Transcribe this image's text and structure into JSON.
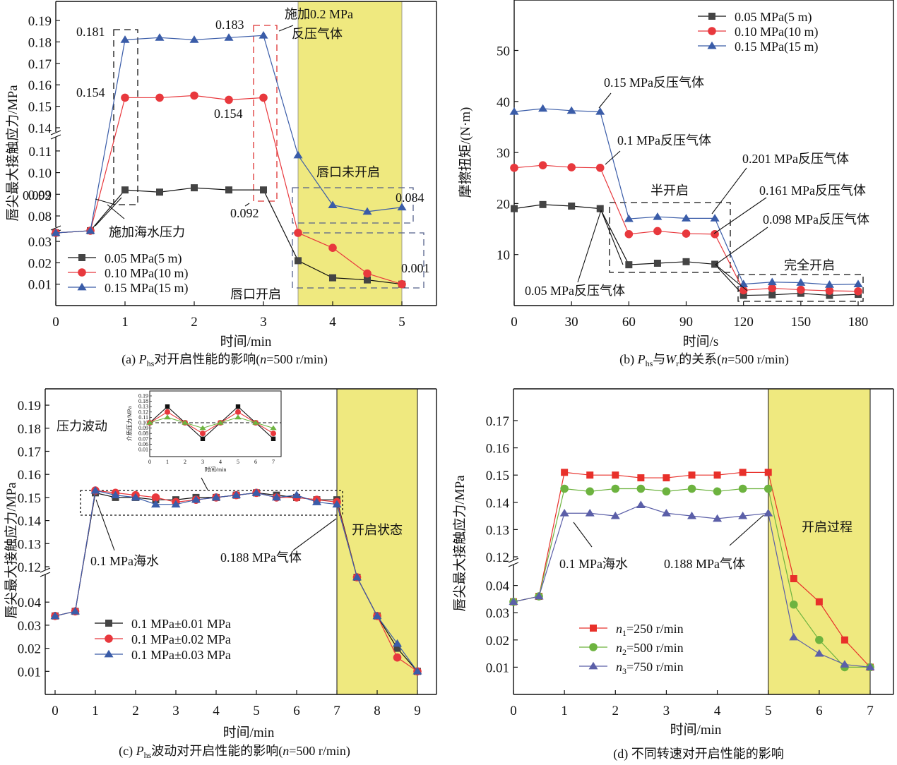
{
  "chart_data": [
    {
      "id": "a",
      "type": "line",
      "caption": "(a) Phs对开启性能的影响(n=500 r/min)",
      "caption_parts": {
        "prefix": "(a) ",
        "P": "P",
        "sub": "hs",
        "mid": "对开启性能的影响(",
        "n": "n",
        "suffix": "=500 r/min)"
      },
      "xlabel": "时间/min",
      "ylabel": "唇尖最大接触应力/MPa",
      "xlim": [
        0,
        5.5
      ],
      "xticks": [
        0,
        1,
        2,
        3,
        4,
        5
      ],
      "y_broken": true,
      "y_segments": [
        {
          "range": [
            0,
            0.035
          ],
          "ticks": [
            0.01,
            0.02,
            0.03
          ]
        },
        {
          "range": [
            0.075,
            0.115
          ],
          "ticks": [
            0.08,
            0.09,
            0.1,
            0.11
          ]
        },
        {
          "range": [
            0.135,
            0.2
          ],
          "ticks": [
            0.14,
            0.15,
            0.16,
            0.17,
            0.18,
            0.19
          ]
        }
      ],
      "x": [
        0,
        0.5,
        1,
        1.5,
        2,
        2.5,
        3,
        3.5,
        4,
        4.5,
        5
      ],
      "series": [
        {
          "name": "0.05 MPa(5 m)",
          "marker": "square",
          "color": "#444444",
          "line": "#111111",
          "values": [
            0.034,
            0.035,
            0.092,
            0.091,
            0.093,
            0.092,
            0.092,
            0.021,
            0.013,
            0.012,
            0.01
          ]
        },
        {
          "name": "0.10 MPa(10 m)",
          "marker": "circle",
          "color": "#e8383d",
          "line": "#e8383d",
          "values": [
            0.034,
            0.035,
            0.154,
            0.154,
            0.155,
            0.153,
            0.154,
            0.034,
            0.027,
            0.015,
            0.01
          ]
        },
        {
          "name": "0.15 MPa(15 m)",
          "marker": "triangle",
          "color": "#3a5ca8",
          "line": "#3a5ca8",
          "values": [
            0.034,
            0.035,
            0.181,
            0.182,
            0.181,
            0.182,
            0.183,
            0.108,
            0.085,
            0.082,
            0.084
          ]
        }
      ],
      "shaded_region": {
        "x_range": [
          3.5,
          5
        ],
        "color": "#efe97f"
      },
      "legend": {
        "placement": "bottom-left"
      },
      "annotations": [
        "0.181",
        "0.154",
        "0.092",
        "0.183",
        "0.154",
        "0.092",
        "施加0.2 MPa",
        "反压气体",
        "唇口未开启",
        "0.084",
        "0.001",
        "施加海水压力",
        "唇口开启"
      ]
    },
    {
      "id": "b",
      "type": "line",
      "caption": "(b) Phs与Wr的关系(n=500 r/min)",
      "caption_parts": {
        "prefix": "(b) ",
        "P": "P",
        "sub": "hs",
        "mid": "与",
        "W": "W",
        "wsub": "r",
        "mid2": "的关系(",
        "n": "n",
        "suffix": "=500 r/min)"
      },
      "xlabel": "时间/s",
      "ylabel": "摩擦扭矩/(N·m)",
      "xlim": [
        0,
        190
      ],
      "ylim": [
        0,
        60
      ],
      "xticks": [
        0,
        30,
        60,
        90,
        120,
        150,
        180
      ],
      "yticks": [
        10,
        20,
        30,
        40,
        50
      ],
      "x": [
        0,
        15,
        30,
        45,
        60,
        75,
        90,
        105,
        120,
        135,
        150,
        165,
        180
      ],
      "series": [
        {
          "name": "0.05 MPa(5 m)",
          "marker": "square",
          "color": "#444444",
          "line": "#111111",
          "values": [
            19.0,
            19.8,
            19.5,
            19.0,
            8.0,
            8.3,
            8.6,
            8.1,
            2.0,
            2.1,
            2.4,
            2.0,
            2.2
          ]
        },
        {
          "name": "0.10 MPa(10 m)",
          "marker": "circle",
          "color": "#e8383d",
          "line": "#e8383d",
          "values": [
            27.0,
            27.5,
            27.1,
            27.0,
            14.0,
            14.6,
            14.1,
            14.0,
            3.0,
            3.4,
            3.1,
            2.9,
            2.8
          ]
        },
        {
          "name": "0.15 MPa(15 m)",
          "marker": "triangle",
          "color": "#3a5ca8",
          "line": "#3a5ca8",
          "values": [
            38.0,
            38.6,
            38.2,
            38.0,
            17.0,
            17.4,
            17.1,
            17.1,
            4.2,
            4.6,
            4.5,
            4.1,
            4.2
          ]
        }
      ],
      "legend": {
        "placement": "top-right"
      },
      "annotations": [
        "0.15 MPa反压气体",
        "0.1 MPa反压气体",
        "0.201 MPa反压气体",
        "0.161 MPa反压气体",
        "0.098 MPa反压气体",
        "0.05 MPa反压气体",
        "半开启",
        "完全开启"
      ]
    },
    {
      "id": "c",
      "type": "line",
      "caption": "(c) Phs波动对开启性能的影响(n=500 r/min)",
      "caption_parts": {
        "prefix": "(c) ",
        "P": "P",
        "sub": "hs",
        "mid": "波动对开启性能的影响(",
        "n": "n",
        "suffix": "=500 r/min)"
      },
      "xlabel": "时间/min",
      "ylabel": "唇尖最大接触应力/MPa",
      "xlim": [
        0,
        9.5
      ],
      "xticks": [
        0,
        1,
        2,
        3,
        4,
        5,
        6,
        7,
        8,
        9
      ],
      "y_broken": true,
      "y_segments": [
        {
          "range": [
            0,
            0.045
          ],
          "ticks": [
            0.01,
            0.02,
            0.03,
            0.04
          ]
        },
        {
          "range": [
            0.115,
            0.2
          ],
          "ticks": [
            0.12,
            0.13,
            0.14,
            0.15,
            0.16,
            0.17,
            0.18,
            0.19
          ]
        }
      ],
      "x": [
        0,
        0.5,
        1,
        1.5,
        2,
        2.5,
        3,
        3.5,
        4,
        4.5,
        5,
        5.5,
        6,
        6.5,
        7,
        7.5,
        8,
        8.5,
        9
      ],
      "series": [
        {
          "name": "0.1 MPa±0.01 MPa",
          "marker": "square",
          "color": "#444444",
          "line": "#111111",
          "values": [
            0.034,
            0.036,
            0.152,
            0.15,
            0.15,
            0.149,
            0.149,
            0.15,
            0.15,
            0.151,
            0.152,
            0.151,
            0.15,
            0.149,
            0.149,
            0.046,
            0.034,
            0.02,
            0.01
          ]
        },
        {
          "name": "0.1 MPa±0.02 MPa",
          "marker": "circle",
          "color": "#e8383d",
          "line": "#e8383d",
          "values": [
            0.034,
            0.036,
            0.153,
            0.152,
            0.151,
            0.15,
            0.148,
            0.149,
            0.15,
            0.151,
            0.152,
            0.15,
            0.15,
            0.149,
            0.148,
            0.046,
            0.034,
            0.016,
            0.01
          ]
        },
        {
          "name": "0.1 MPa±0.03 MPa",
          "marker": "triangle",
          "color": "#3a5ca8",
          "line": "#3a5ca8",
          "values": [
            0.034,
            0.036,
            0.153,
            0.151,
            0.15,
            0.147,
            0.147,
            0.149,
            0.15,
            0.151,
            0.152,
            0.15,
            0.151,
            0.148,
            0.147,
            0.046,
            0.034,
            0.022,
            0.01
          ]
        }
      ],
      "shaded_region": {
        "x_range": [
          7,
          9
        ],
        "color": "#efe97f"
      },
      "legend": {
        "placement": "bottom-left"
      },
      "annotations": [
        "压力波动",
        "0.1 MPa海水",
        "0.188 MPa气体",
        "开启状态"
      ],
      "inset": {
        "xlabel": "时间/min",
        "ylabel": "介质压力/MPa",
        "xticks": [
          0,
          1,
          2,
          3,
          4,
          5,
          6,
          7
        ],
        "yticks": [
          "0.01",
          "0.06",
          "0.07",
          "0.08",
          "0.09",
          "0.10",
          "0.11",
          "0.12",
          "0.13",
          "0.18",
          "0.19"
        ],
        "reference_line": 0.1,
        "x": [
          0,
          1,
          2,
          3,
          4,
          5,
          6,
          7
        ],
        "series": [
          {
            "name": "±0.03",
            "marker": "square",
            "color": "#111111",
            "values": [
              0.1,
              0.13,
              0.1,
              0.07,
              0.1,
              0.13,
              0.1,
              0.07
            ]
          },
          {
            "name": "±0.02",
            "marker": "circle",
            "color": "#e8383d",
            "values": [
              0.1,
              0.12,
              0.1,
              0.08,
              0.1,
              0.12,
              0.1,
              0.08
            ]
          },
          {
            "name": "±0.01",
            "marker": "triangle",
            "color": "#6db33f",
            "values": [
              0.1,
              0.11,
              0.1,
              0.09,
              0.1,
              0.11,
              0.1,
              0.09
            ]
          }
        ]
      }
    },
    {
      "id": "d",
      "type": "line",
      "caption": "(d) 不同转速对开启性能的影响",
      "xlabel": "时间/min",
      "ylabel": "唇尖最大接触应力/MPa",
      "xlim": [
        0,
        7.5
      ],
      "xticks": [
        0,
        1,
        2,
        3,
        4,
        5,
        6,
        7
      ],
      "y_broken": true,
      "y_segments": [
        {
          "range": [
            0,
            0.045
          ],
          "ticks": [
            0.01,
            0.02,
            0.03,
            0.04
          ]
        },
        {
          "range": [
            0.115,
            0.18
          ],
          "ticks": [
            0.12,
            0.13,
            0.14,
            0.15,
            0.16,
            0.17
          ]
        }
      ],
      "x": [
        0,
        0.5,
        1,
        1.5,
        2,
        2.5,
        3,
        3.5,
        4,
        4.5,
        5,
        5.5,
        6,
        6.5,
        7
      ],
      "series": [
        {
          "name": "n1=250 r/min",
          "label_n": "n",
          "label_sub": "1",
          "label_rest": "=250 r/min",
          "marker": "square",
          "color": "#e8302a",
          "line": "#e8302a",
          "values": [
            0.034,
            0.036,
            0.151,
            0.15,
            0.15,
            0.149,
            0.149,
            0.15,
            0.15,
            0.151,
            0.151,
            0.046,
            0.034,
            0.02,
            0.01
          ]
        },
        {
          "name": "n2=500 r/min",
          "label_n": "n",
          "label_sub": "2",
          "label_rest": "=500 r/min",
          "marker": "circle",
          "color": "#6db33f",
          "line": "#6db33f",
          "values": [
            0.034,
            0.036,
            0.145,
            0.144,
            0.145,
            0.145,
            0.144,
            0.145,
            0.144,
            0.145,
            0.145,
            0.033,
            0.02,
            0.01,
            0.01
          ]
        },
        {
          "name": "n3=750 r/min",
          "label_n": "n",
          "label_sub": "3",
          "label_rest": "=750 r/min",
          "marker": "triangle",
          "color": "#5b5fa8",
          "line": "#5b5fa8",
          "values": [
            0.034,
            0.036,
            0.136,
            0.136,
            0.135,
            0.139,
            0.136,
            0.135,
            0.134,
            0.135,
            0.136,
            0.021,
            0.015,
            0.011,
            0.01
          ]
        }
      ],
      "shaded_region": {
        "x_range": [
          5,
          7
        ],
        "color": "#efe97f"
      },
      "legend": {
        "placement": "bottom-left"
      },
      "annotations": [
        "0.1 MPa海水",
        "0.188 MPa气体",
        "开启过程"
      ]
    }
  ]
}
